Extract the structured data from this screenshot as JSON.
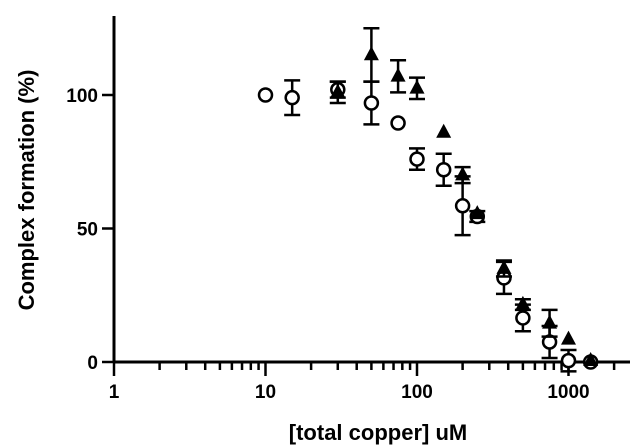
{
  "chart_data": {
    "type": "scatter",
    "title": "",
    "xlabel": "[total copper] uM",
    "ylabel": "Complex formation (%)",
    "xscale": "log",
    "xlim": [
      1,
      2500
    ],
    "ylim": [
      0,
      128
    ],
    "x_ticks": [
      1,
      10,
      100,
      1000
    ],
    "x_tick_labels": [
      "1",
      "10",
      "100",
      "1000"
    ],
    "y_ticks": [
      0,
      50,
      100
    ],
    "y_tick_labels": [
      "0",
      "50",
      "100"
    ],
    "grid": false,
    "legend": "none",
    "series": [
      {
        "marker": "circle-open",
        "points": [
          {
            "x": 10,
            "y": 100,
            "err": 0
          },
          {
            "x": 15,
            "y": 99,
            "err": 6.5
          },
          {
            "x": 30,
            "y": 102,
            "err": 3
          },
          {
            "x": 50,
            "y": 97,
            "err": 8
          },
          {
            "x": 75,
            "y": 89.5,
            "err": 0
          },
          {
            "x": 100,
            "y": 76,
            "err": 4
          },
          {
            "x": 150,
            "y": 72,
            "err": 6
          },
          {
            "x": 200,
            "y": 58.5,
            "err": 11
          },
          {
            "x": 250,
            "y": 54.5,
            "err": 2
          },
          {
            "x": 375,
            "y": 31.5,
            "err": 6
          },
          {
            "x": 500,
            "y": 16.5,
            "err": 5
          },
          {
            "x": 750,
            "y": 7.5,
            "err": 6
          },
          {
            "x": 1000,
            "y": 0.5,
            "err": 4
          },
          {
            "x": 1400,
            "y": 0,
            "err": 0
          }
        ]
      },
      {
        "marker": "triangle-filled",
        "points": [
          {
            "x": 30,
            "y": 101,
            "err": 4
          },
          {
            "x": 50,
            "y": 115,
            "err": 10
          },
          {
            "x": 75,
            "y": 107,
            "err": 6
          },
          {
            "x": 100,
            "y": 102.5,
            "err": 4
          },
          {
            "x": 150,
            "y": 86,
            "err": 0
          },
          {
            "x": 200,
            "y": 70,
            "err": 3
          },
          {
            "x": 250,
            "y": 55.5,
            "err": 0
          },
          {
            "x": 375,
            "y": 35,
            "err": 3
          },
          {
            "x": 500,
            "y": 21.5,
            "err": 2
          },
          {
            "x": 750,
            "y": 14.5,
            "err": 5
          },
          {
            "x": 1000,
            "y": 8.5,
            "err": 0
          },
          {
            "x": 1400,
            "y": 0.5,
            "err": 0
          }
        ]
      }
    ]
  }
}
